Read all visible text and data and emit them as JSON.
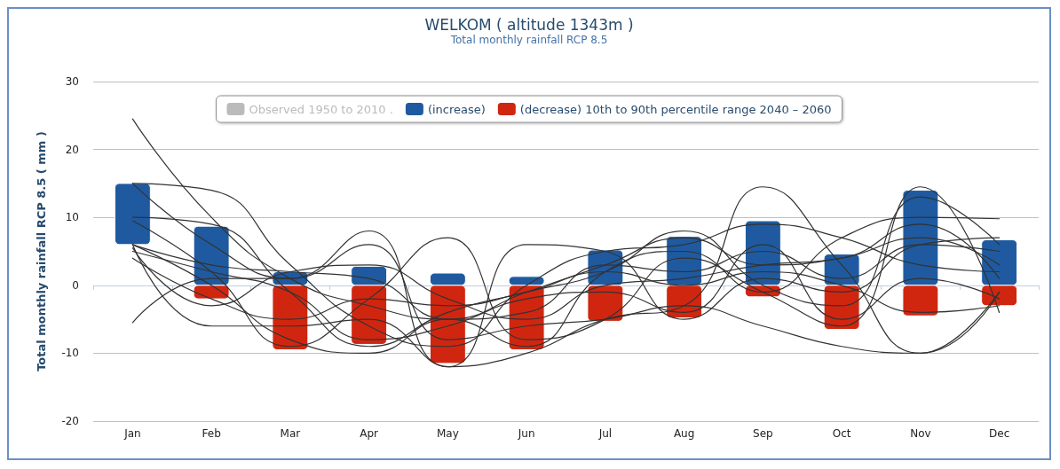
{
  "chart_data": {
    "type": "bar",
    "title": "WELKOM ( altitude 1343m )",
    "subtitle": "Total monthly rainfall RCP 8.5",
    "ylabel": "Total monthly rainfall RCP 8.5 ( mm )",
    "categories": [
      "Jan",
      "Feb",
      "Mar",
      "Apr",
      "May",
      "Jun",
      "Jul",
      "Aug",
      "Sep",
      "Oct",
      "Nov",
      "Dec"
    ],
    "ylim": [
      -20,
      30
    ],
    "yticks": [
      -20,
      -10,
      0,
      10,
      20,
      30
    ],
    "grid": "y",
    "legend": "top",
    "marker": "none",
    "series": [
      {
        "name": "Observed 1950 to 2010 .",
        "type": "line",
        "color": "#c0c0c0",
        "values": [
          null,
          null,
          null,
          null,
          null,
          null,
          null,
          null,
          null,
          null,
          null,
          null
        ]
      },
      {
        "name": "(increase)",
        "color": "#1f5aa0",
        "base": [
          6,
          0,
          0,
          0,
          0,
          0,
          0,
          0,
          0,
          0,
          0,
          0
        ],
        "values": [
          9,
          8.7,
          2,
          2.8,
          1.8,
          1.3,
          5.2,
          7.2,
          9.5,
          4.6,
          14,
          6.7
        ]
      },
      {
        "name": "(decrease) 10th to 90th percentile range 2040 – 2060",
        "color": "#d02610",
        "base": [
          null,
          0,
          0,
          0,
          0,
          0,
          0,
          0,
          0,
          0,
          0,
          0
        ],
        "values": [
          null,
          -2,
          -9.5,
          -8.7,
          -11.5,
          -9.5,
          -5.3,
          -4.8,
          -1.7,
          -6.5,
          -4.5,
          -3
        ]
      },
      {
        "type": "line",
        "color": "#333333",
        "values": [
          24.5,
          10,
          1,
          -3,
          -5,
          -4,
          3,
          2,
          5,
          1,
          6,
          5
        ]
      },
      {
        "type": "line",
        "color": "#333333",
        "values": [
          15,
          14,
          3,
          -6,
          -9,
          0,
          5,
          6,
          9,
          7,
          3,
          2
        ]
      },
      {
        "type": "line",
        "color": "#333333",
        "values": [
          15,
          6,
          1,
          8,
          -12,
          -10,
          -5,
          -3,
          14.5,
          3,
          -10,
          -1
        ]
      },
      {
        "type": "line",
        "color": "#333333",
        "values": [
          10,
          9,
          -1,
          -9,
          -4,
          -1,
          2,
          8,
          0,
          -3,
          13,
          6
        ]
      },
      {
        "type": "line",
        "color": "#333333",
        "values": [
          9.5,
          2,
          -9,
          -2,
          7,
          -8,
          -5,
          4,
          -1,
          -6,
          14.5,
          -4
        ]
      },
      {
        "type": "line",
        "color": "#333333",
        "values": [
          6,
          -6,
          -6,
          -5,
          -12,
          6,
          5,
          -5,
          1,
          -1,
          6,
          7
        ]
      },
      {
        "type": "line",
        "color": "#333333",
        "values": [
          6,
          3,
          2,
          1,
          -5,
          -1,
          3,
          7,
          3,
          4,
          7,
          3
        ]
      },
      {
        "type": "line",
        "color": "#333333",
        "values": [
          6,
          0,
          -8,
          -10,
          -5,
          -9,
          2,
          5,
          -1,
          7,
          10,
          9.8
        ]
      },
      {
        "type": "line",
        "color": "#333333",
        "values": [
          5.5,
          -3,
          2,
          3,
          -2,
          -5,
          0,
          1,
          3,
          4,
          9,
          1
        ]
      },
      {
        "type": "line",
        "color": "#333333",
        "values": [
          5,
          2,
          -1,
          -8,
          -6,
          -2,
          -1,
          -4,
          6,
          -5,
          1,
          -2
        ]
      },
      {
        "type": "line",
        "color": "#333333",
        "values": [
          4,
          -2,
          -5,
          -2,
          -3,
          -1,
          2,
          0,
          2,
          0,
          -4,
          -3
        ]
      },
      {
        "type": "line",
        "color": "#333333",
        "values": [
          -5.5,
          1,
          1,
          6,
          -8,
          -6,
          -5,
          -3,
          -6,
          -9,
          -10,
          -1
        ]
      }
    ]
  }
}
